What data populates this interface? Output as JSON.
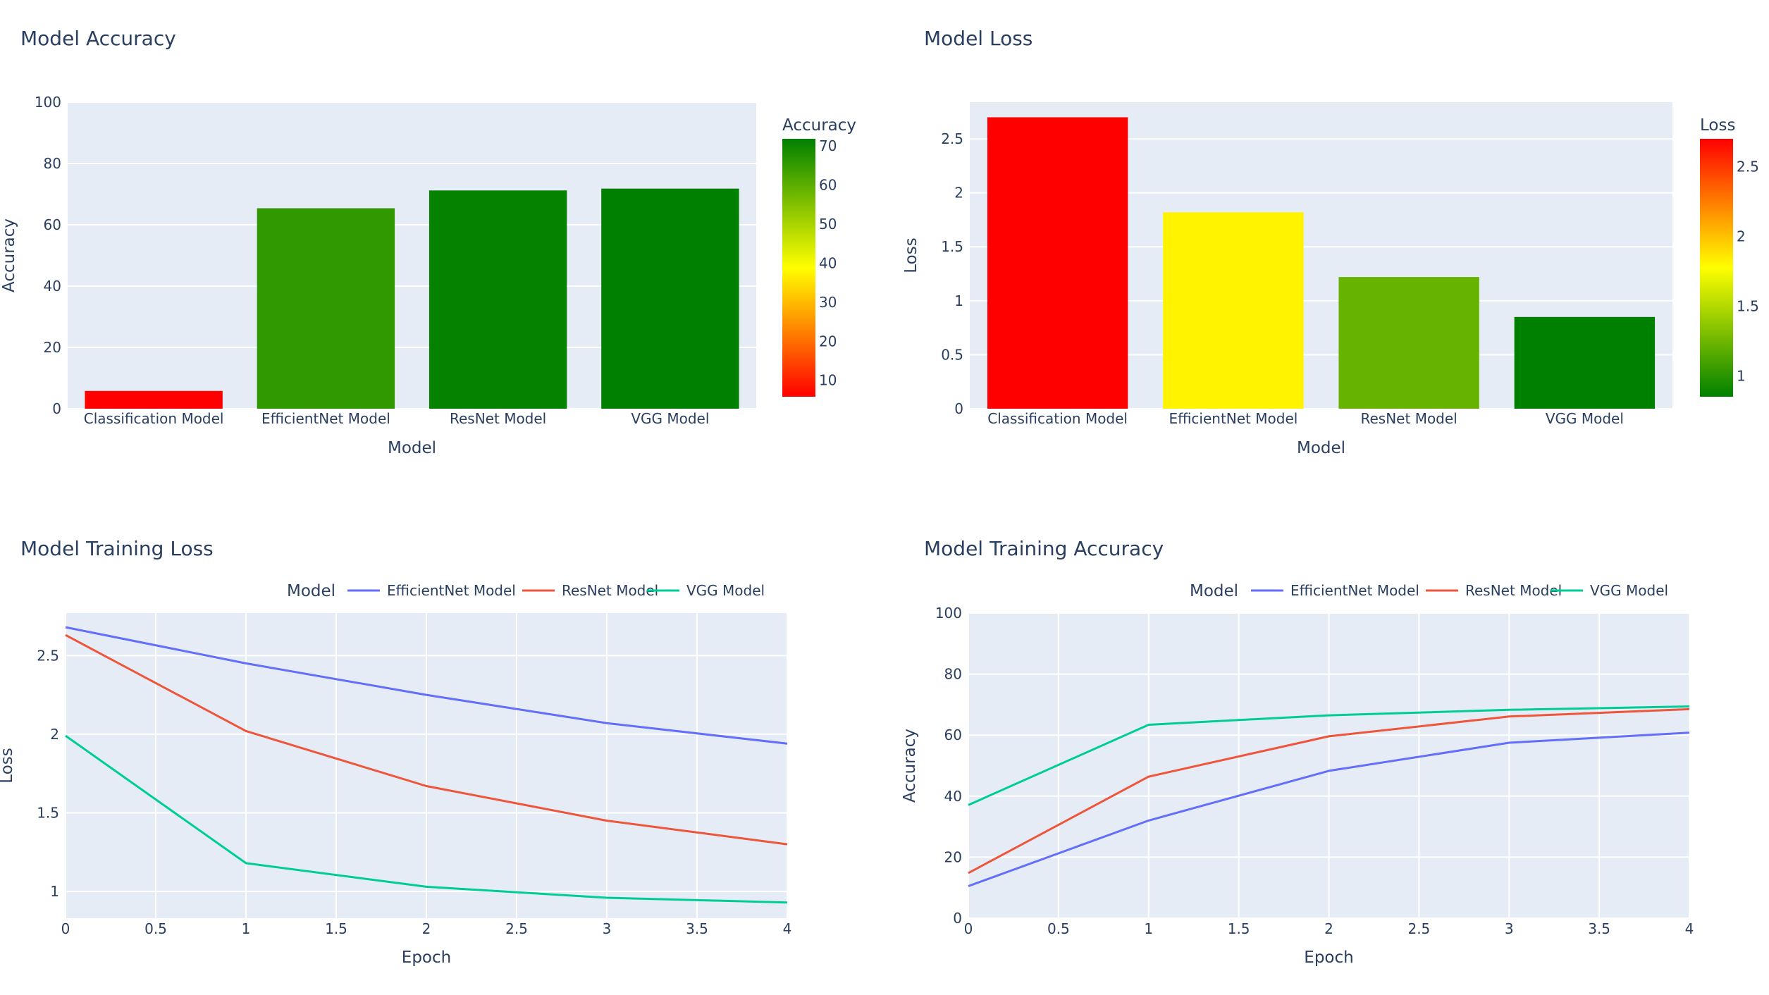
{
  "colors": {
    "plot_bg": "#e5ecf6",
    "grid": "#ffffff",
    "text": "#2a3f5f",
    "efficientnet": "#636efa",
    "resnet": "#ef553b",
    "vgg": "#00cc96",
    "scale_red": "#ff0000",
    "scale_yellow": "#ffff00",
    "scale_green": "#008000"
  },
  "chart_data": [
    {
      "id": "accuracy",
      "type": "bar",
      "title": "Model Accuracy",
      "xlabel": "Model",
      "ylabel": "Accuracy",
      "categories": [
        "Classification Model",
        "EfficientNet Model",
        "ResNet Model",
        "VGG Model"
      ],
      "values": [
        5.8,
        65.4,
        71.2,
        71.8
      ],
      "ylim": [
        0,
        100
      ],
      "yticks": [
        0,
        20,
        40,
        60,
        80,
        100
      ],
      "colorbar": {
        "title": "Accuracy",
        "range": [
          5.8,
          71.8
        ],
        "ticks": [
          10,
          20,
          30,
          40,
          50,
          60,
          70
        ],
        "colorscale": [
          "#ff0000",
          "#ffff00",
          "#008000"
        ]
      }
    },
    {
      "id": "loss",
      "type": "bar",
      "title": "Model Loss",
      "xlabel": "Model",
      "ylabel": "Loss",
      "categories": [
        "Classification Model",
        "EfficientNet Model",
        "ResNet Model",
        "VGG Model"
      ],
      "values": [
        2.7,
        1.82,
        1.22,
        0.85
      ],
      "ylim": [
        0,
        2.84
      ],
      "yticks": [
        0,
        0.5,
        1,
        1.5,
        2,
        2.5
      ],
      "colorbar": {
        "title": "Loss",
        "range": [
          0.85,
          2.7
        ],
        "ticks": [
          1,
          1.5,
          2,
          2.5
        ],
        "colorscale": [
          "#008000",
          "#ffff00",
          "#ff0000"
        ]
      }
    },
    {
      "id": "training-loss",
      "type": "line",
      "title": "Model Training Loss",
      "xlabel": "Epoch",
      "ylabel": "Loss",
      "legend_title": "Model",
      "x": [
        0,
        1,
        2,
        3,
        4
      ],
      "xlim": [
        0,
        4
      ],
      "xticks": [
        0,
        0.5,
        1,
        1.5,
        2,
        2.5,
        3,
        3.5,
        4
      ],
      "ylim": [
        0.83,
        2.77
      ],
      "yticks": [
        1,
        1.5,
        2,
        2.5
      ],
      "series": [
        {
          "name": "EfficientNet Model",
          "values": [
            2.68,
            2.45,
            2.25,
            2.07,
            1.94
          ]
        },
        {
          "name": "ResNet Model",
          "values": [
            2.63,
            2.02,
            1.67,
            1.45,
            1.3
          ]
        },
        {
          "name": "VGG Model",
          "values": [
            1.99,
            1.18,
            1.03,
            0.96,
            0.93
          ]
        }
      ]
    },
    {
      "id": "training-accuracy",
      "type": "line",
      "title": "Model Training Accuracy",
      "xlabel": "Epoch",
      "ylabel": "Accuracy",
      "legend_title": "Model",
      "x": [
        0,
        1,
        2,
        3,
        4
      ],
      "xlim": [
        0,
        4
      ],
      "xticks": [
        0,
        0.5,
        1,
        1.5,
        2,
        2.5,
        3,
        3.5,
        4
      ],
      "ylim": [
        0,
        100
      ],
      "yticks": [
        0,
        20,
        40,
        60,
        80,
        100
      ],
      "series": [
        {
          "name": "EfficientNet Model",
          "values": [
            10.5,
            32,
            48.3,
            57.5,
            60.8
          ]
        },
        {
          "name": "ResNet Model",
          "values": [
            14.8,
            46.4,
            59.6,
            66.1,
            68.5
          ]
        },
        {
          "name": "VGG Model",
          "values": [
            37.1,
            63.4,
            66.5,
            68.3,
            69.4
          ]
        }
      ]
    }
  ]
}
